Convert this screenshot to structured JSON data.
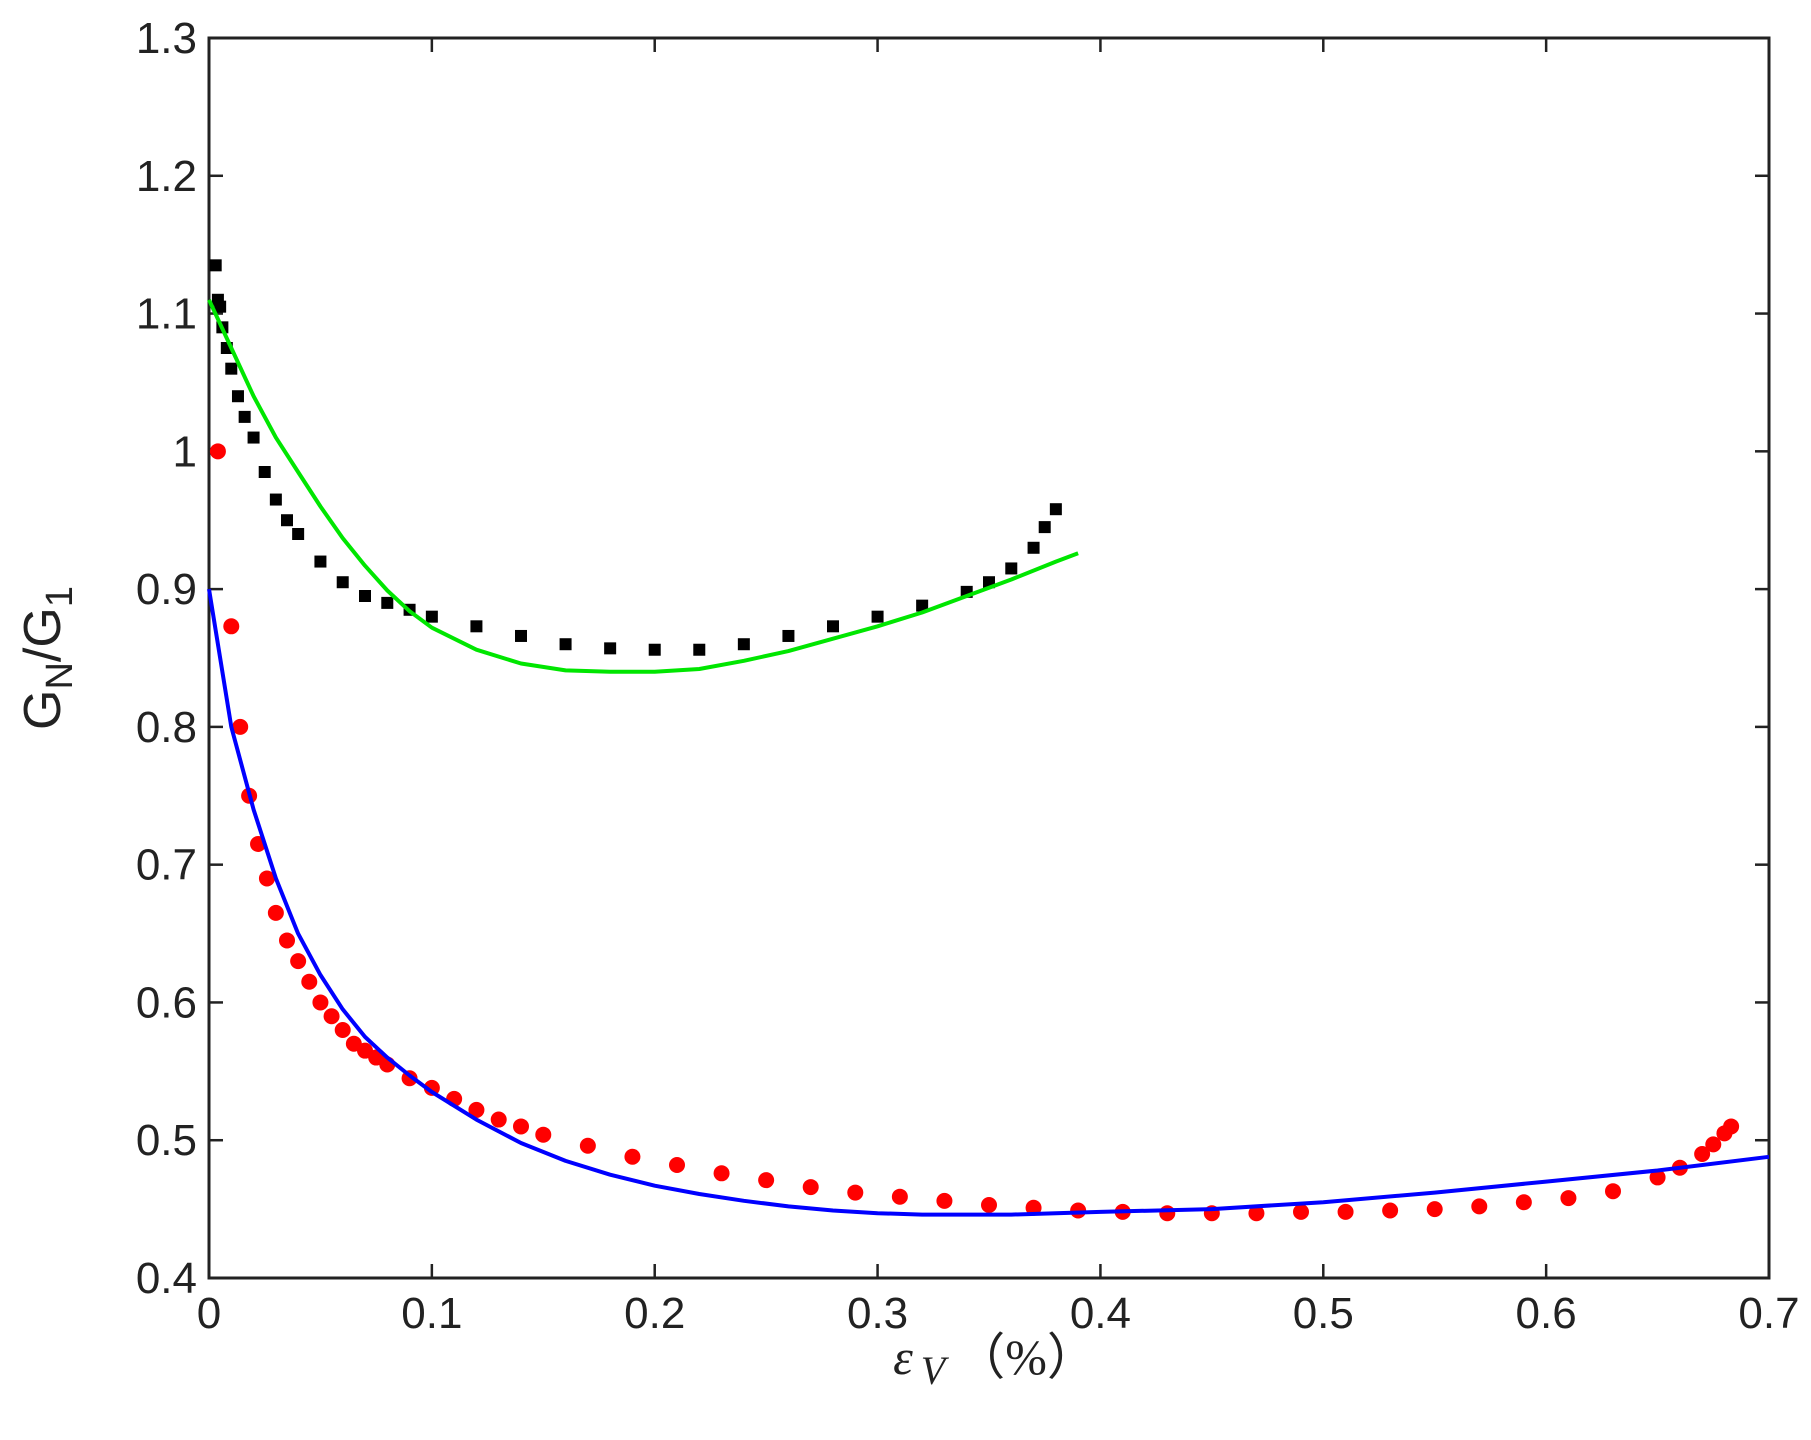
{
  "chart_data": {
    "type": "scatter",
    "title": "",
    "xlabel": {
      "symbol": "ε",
      "subscript": "V",
      "unit": "（%）"
    },
    "ylabel": {
      "main": "G",
      "sub1": "N",
      "slash": "/G",
      "sub2": "1"
    },
    "xlim": [
      0,
      0.7
    ],
    "ylim": [
      0.4,
      1.3
    ],
    "grid": false,
    "legend": "none",
    "x_ticks": [
      0,
      0.1,
      0.2,
      0.3,
      0.4,
      0.5,
      0.6,
      0.7
    ],
    "x_tick_labels": [
      "0",
      "0.1",
      "0.2",
      "0.3",
      "0.4",
      "0.5",
      "0.6",
      "0.7"
    ],
    "y_ticks": [
      0.4,
      0.5,
      0.6,
      0.7,
      0.8,
      0.9,
      1.0,
      1.1,
      1.2,
      1.3
    ],
    "y_tick_labels": [
      "0.4",
      "0.5",
      "0.6",
      "0.7",
      "0.8",
      "0.9",
      "1",
      "1.1",
      "1.2",
      "1.3"
    ],
    "series": [
      {
        "kind": "markers",
        "marker": "square",
        "color": "#000000",
        "x": [
          0.003,
          0.004,
          0.005,
          0.006,
          0.008,
          0.01,
          0.013,
          0.016,
          0.02,
          0.025,
          0.03,
          0.035,
          0.04,
          0.05,
          0.06,
          0.07,
          0.08,
          0.09,
          0.1,
          0.12,
          0.14,
          0.16,
          0.18,
          0.2,
          0.22,
          0.24,
          0.26,
          0.28,
          0.3,
          0.32,
          0.34,
          0.35,
          0.36,
          0.37,
          0.375,
          0.38
        ],
        "y": [
          1.135,
          1.11,
          1.105,
          1.09,
          1.075,
          1.06,
          1.04,
          1.025,
          1.01,
          0.985,
          0.965,
          0.95,
          0.94,
          0.92,
          0.905,
          0.895,
          0.89,
          0.885,
          0.88,
          0.873,
          0.866,
          0.86,
          0.857,
          0.856,
          0.856,
          0.86,
          0.866,
          0.873,
          0.88,
          0.888,
          0.898,
          0.905,
          0.915,
          0.93,
          0.945,
          0.958
        ]
      },
      {
        "kind": "line",
        "color": "#00e600",
        "x": [
          0,
          0.01,
          0.02,
          0.03,
          0.04,
          0.05,
          0.06,
          0.07,
          0.08,
          0.09,
          0.1,
          0.12,
          0.14,
          0.16,
          0.18,
          0.2,
          0.22,
          0.24,
          0.26,
          0.28,
          0.3,
          0.32,
          0.34,
          0.36,
          0.38,
          0.39
        ],
        "y": [
          1.11,
          1.075,
          1.04,
          1.01,
          0.985,
          0.96,
          0.937,
          0.917,
          0.899,
          0.884,
          0.872,
          0.856,
          0.846,
          0.841,
          0.84,
          0.84,
          0.842,
          0.848,
          0.855,
          0.864,
          0.873,
          0.883,
          0.895,
          0.907,
          0.92,
          0.926
        ]
      },
      {
        "kind": "markers",
        "marker": "circle",
        "color": "#ff0000",
        "x": [
          0.004,
          0.01,
          0.014,
          0.018,
          0.022,
          0.026,
          0.03,
          0.035,
          0.04,
          0.045,
          0.05,
          0.055,
          0.06,
          0.065,
          0.07,
          0.075,
          0.08,
          0.09,
          0.1,
          0.11,
          0.12,
          0.13,
          0.14,
          0.15,
          0.17,
          0.19,
          0.21,
          0.23,
          0.25,
          0.27,
          0.29,
          0.31,
          0.33,
          0.35,
          0.37,
          0.39,
          0.41,
          0.43,
          0.45,
          0.47,
          0.49,
          0.51,
          0.53,
          0.55,
          0.57,
          0.59,
          0.61,
          0.63,
          0.65,
          0.66,
          0.67,
          0.675,
          0.68,
          0.683
        ],
        "y": [
          1.0,
          0.873,
          0.8,
          0.75,
          0.715,
          0.69,
          0.665,
          0.645,
          0.63,
          0.615,
          0.6,
          0.59,
          0.58,
          0.57,
          0.565,
          0.56,
          0.555,
          0.545,
          0.538,
          0.53,
          0.522,
          0.515,
          0.51,
          0.504,
          0.496,
          0.488,
          0.482,
          0.476,
          0.471,
          0.466,
          0.462,
          0.459,
          0.456,
          0.453,
          0.451,
          0.449,
          0.448,
          0.447,
          0.447,
          0.447,
          0.448,
          0.448,
          0.449,
          0.45,
          0.452,
          0.455,
          0.458,
          0.463,
          0.473,
          0.48,
          0.49,
          0.497,
          0.505,
          0.51
        ]
      },
      {
        "kind": "line",
        "color": "#0000ff",
        "x": [
          0,
          0.01,
          0.02,
          0.03,
          0.04,
          0.05,
          0.06,
          0.07,
          0.08,
          0.09,
          0.1,
          0.12,
          0.14,
          0.16,
          0.18,
          0.2,
          0.22,
          0.24,
          0.26,
          0.28,
          0.3,
          0.32,
          0.34,
          0.36,
          0.38,
          0.4,
          0.45,
          0.5,
          0.55,
          0.6,
          0.65,
          0.7
        ],
        "y": [
          0.9,
          0.8,
          0.74,
          0.69,
          0.65,
          0.62,
          0.595,
          0.575,
          0.56,
          0.547,
          0.535,
          0.515,
          0.498,
          0.485,
          0.475,
          0.467,
          0.461,
          0.456,
          0.452,
          0.449,
          0.447,
          0.446,
          0.446,
          0.446,
          0.447,
          0.448,
          0.45,
          0.455,
          0.462,
          0.47,
          0.478,
          0.488
        ]
      }
    ]
  }
}
